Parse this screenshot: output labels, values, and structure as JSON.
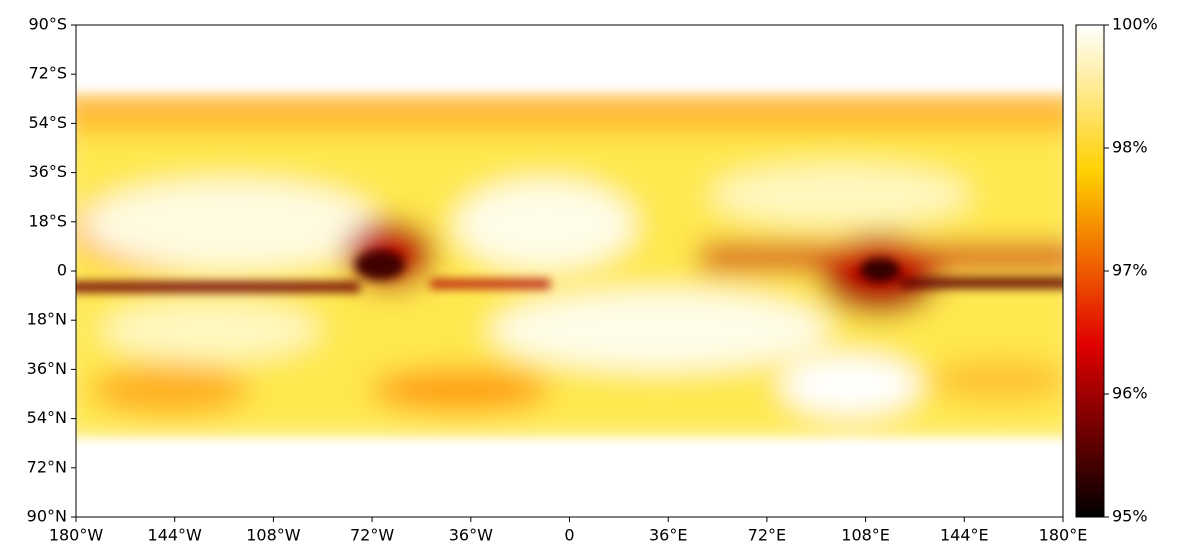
{
  "chart_data": {
    "type": "heatmap",
    "xlim": [
      -180,
      180
    ],
    "xticks": [
      {
        "value": -180,
        "label": "180°W"
      },
      {
        "value": -144,
        "label": "144°W"
      },
      {
        "value": -108,
        "label": "108°W"
      },
      {
        "value": -72,
        "label": "72°W"
      },
      {
        "value": -36,
        "label": "36°W"
      },
      0,
      {
        "value": 36,
        "label": "36°E"
      },
      {
        "value": 72,
        "label": "72°E"
      },
      {
        "value": 108,
        "label": "108°E"
      },
      {
        "value": 144,
        "label": "144°E"
      },
      {
        "value": 180,
        "label": "180°E"
      }
    ],
    "ylim": [
      90,
      -90
    ],
    "yticks": [
      {
        "value": -90,
        "label": "90°S"
      },
      {
        "value": -72,
        "label": "72°S"
      },
      {
        "value": -54,
        "label": "54°S"
      },
      {
        "value": -36,
        "label": "36°S"
      },
      {
        "value": -18,
        "label": "18°S"
      },
      0,
      {
        "value": 18,
        "label": "18°N"
      },
      {
        "value": 36,
        "label": "36°N"
      },
      {
        "value": 54,
        "label": "54°N"
      },
      {
        "value": 72,
        "label": "72°N"
      },
      {
        "value": 90,
        "label": "90°N"
      }
    ],
    "colormap": "hot",
    "colorbar": {
      "tick_spacing": "uniform",
      "ticks": [
        {
          "value": 95,
          "label": "95%"
        },
        {
          "value": 96,
          "label": "96%"
        },
        {
          "value": 97,
          "label": "97%"
        },
        {
          "value": 98,
          "label": "98%"
        },
        {
          "value": 100,
          "label": "100%"
        }
      ]
    }
  }
}
